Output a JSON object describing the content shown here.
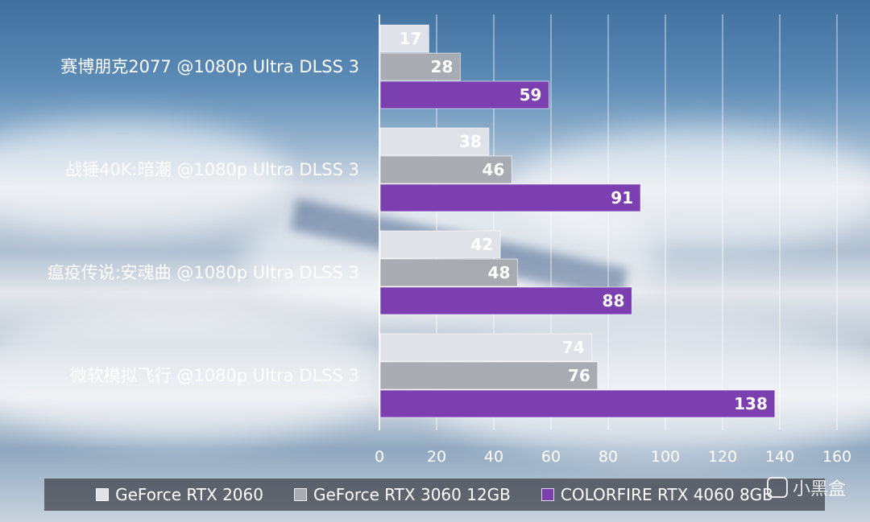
{
  "chart_data": {
    "type": "bar",
    "orientation": "horizontal",
    "categories": [
      "赛博朋克2077 @1080p Ultra DLSS 3",
      "战锤40K:暗潮 @1080p Ultra DLSS 3",
      "瘟疫传说:安魂曲 @1080p Ultra DLSS 3",
      "微软模拟飞行 @1080p Ultra DLSS 3"
    ],
    "series": [
      {
        "name": "GeForce RTX 2060",
        "values": [
          17,
          38,
          42,
          74
        ],
        "color": "#dfe2e8"
      },
      {
        "name": "GeForce RTX 3060 12GB",
        "values": [
          28,
          46,
          48,
          76
        ],
        "color": "#a8abb2"
      },
      {
        "name": "COLORFIRE RTX 4060 8GB",
        "values": [
          59,
          91,
          88,
          138
        ],
        "color": "#7b3fb0"
      }
    ],
    "xlim": [
      0,
      160
    ],
    "xticks": [
      0,
      20,
      40,
      60,
      80,
      100,
      120,
      140,
      160
    ],
    "grid": true,
    "legend_position": "bottom"
  },
  "watermark": "小黑盒"
}
